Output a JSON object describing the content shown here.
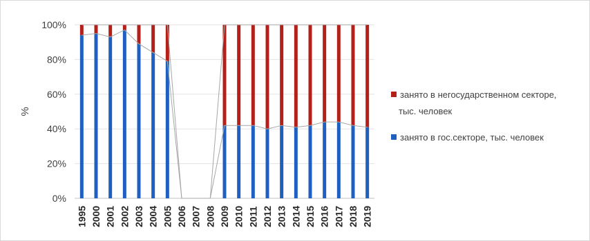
{
  "chart_data": {
    "type": "bar",
    "stacked": "percent",
    "categories": [
      "1995",
      "2000",
      "2001",
      "2002",
      "2003",
      "2004",
      "2005",
      "2006",
      "2007",
      "2008",
      "2009",
      "2010",
      "2011",
      "2012",
      "2013",
      "2014",
      "2015",
      "2016",
      "2017",
      "2018",
      "2019"
    ],
    "series": [
      {
        "name": "занято в гос.секторе, тыс. человек",
        "color": "#1f5fbf",
        "values": [
          94,
          95,
          93,
          97,
          89,
          84,
          79,
          0,
          0,
          0,
          42,
          42,
          42,
          40,
          42,
          41,
          42,
          44,
          44,
          42,
          41
        ]
      },
      {
        "name": "занято в негосударственном секторе, тыс. человек",
        "color": "#b3201a",
        "values": [
          6,
          5,
          7,
          3,
          11,
          16,
          21,
          0,
          0,
          0,
          58,
          58,
          58,
          60,
          58,
          59,
          58,
          56,
          56,
          58,
          59
        ]
      }
    ],
    "line_color": "#a6a6a6",
    "ylabel": "%",
    "ylim": [
      0,
      100
    ],
    "yticks": [
      "0%",
      "20%",
      "40%",
      "60%",
      "80%",
      "100%"
    ],
    "grid": true,
    "legend_position": "right",
    "legend": [
      {
        "lines": [
          "занято в негосударственном секторе,",
          "тыс. человек"
        ],
        "color": "#b3201a"
      },
      {
        "lines": [
          "занято в гос.секторе, тыс. человек"
        ],
        "color": "#1f5fbf"
      }
    ]
  }
}
